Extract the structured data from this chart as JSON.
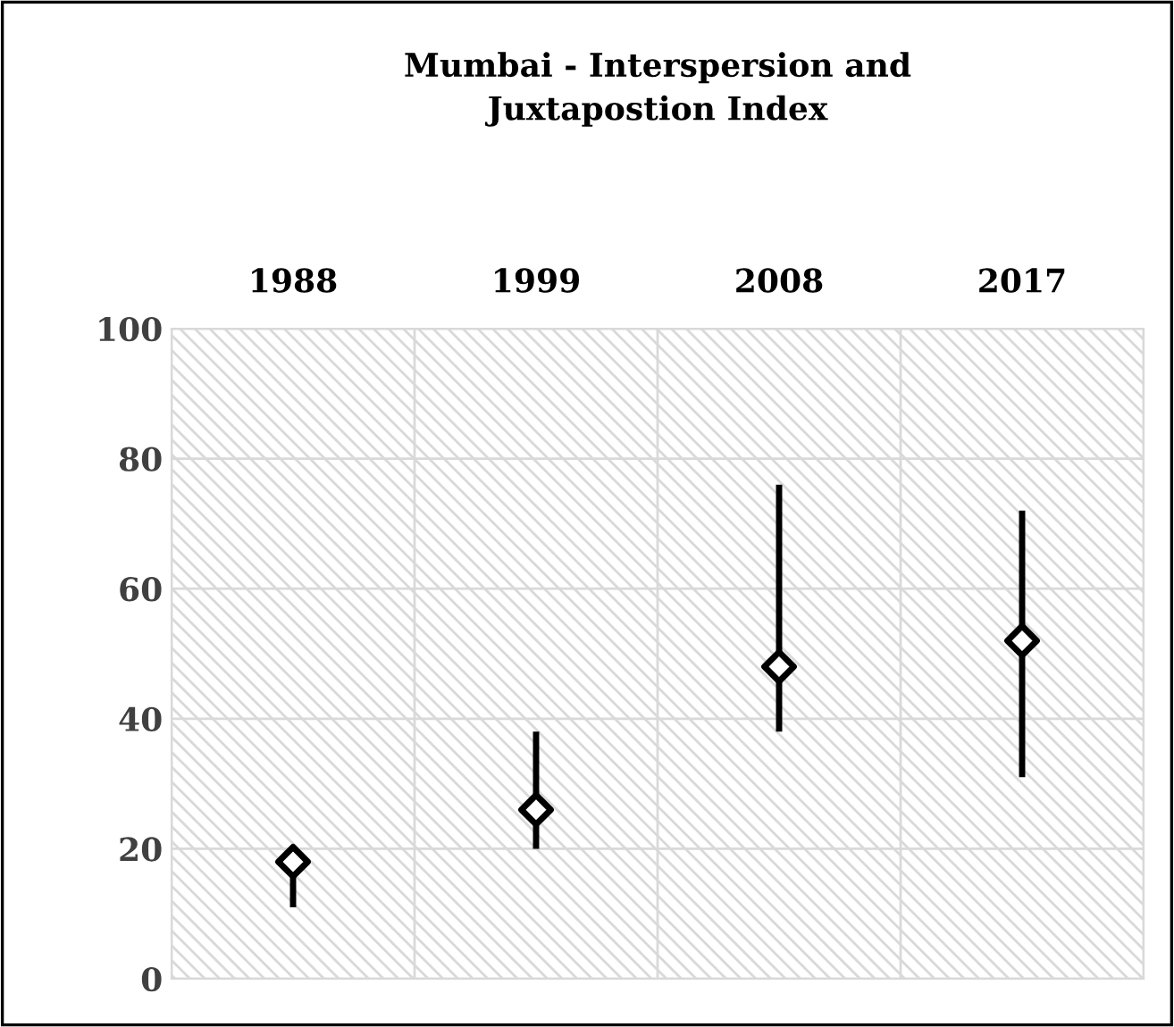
{
  "chart_data": {
    "type": "scatter",
    "title": "Mumbai - Interspersion and\nJuxtapostion Index",
    "categories": [
      "1988",
      "1999",
      "2008",
      "2017"
    ],
    "values": [
      18,
      26,
      48,
      52
    ],
    "errors": [
      [
        11,
        18
      ],
      [
        20,
        38
      ],
      [
        38,
        76
      ],
      [
        31,
        72
      ]
    ],
    "color": "#000000",
    "marker": "diamond",
    "ylim": [
      0,
      100
    ],
    "yticks": [
      0,
      20,
      40,
      60,
      80,
      100
    ],
    "grid": true
  }
}
